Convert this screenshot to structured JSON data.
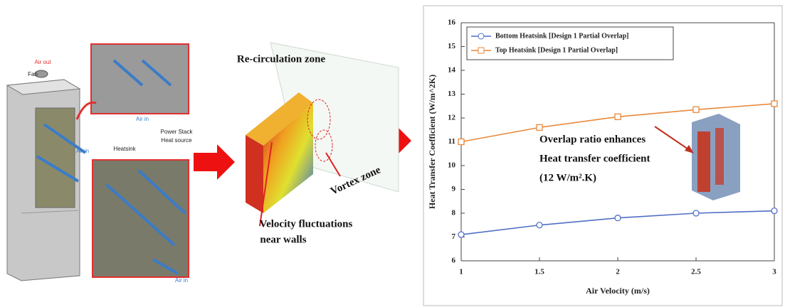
{
  "chart_data": {
    "type": "line",
    "x": [
      1,
      1.5,
      2,
      2.5,
      3
    ],
    "xlim": [
      1,
      3
    ],
    "xticks": [
      1,
      1.5,
      2,
      2.5,
      3
    ],
    "ylim": [
      6,
      16
    ],
    "yticks": [
      6,
      7,
      8,
      9,
      10,
      11,
      12,
      13,
      14,
      15,
      16
    ],
    "x_label": "Air Velocity (m/s)",
    "y_label": "Heat Transfer Coefficient (W/m^2K)",
    "legend": "upper left",
    "grid": false,
    "series": [
      {
        "name": "Bottom Heatsink [Design 1 Partial Overlap]",
        "color": "#4f6fc6",
        "marker": "circle",
        "values": [
          7.1,
          7.5,
          7.8,
          8.0,
          8.1
        ]
      },
      {
        "name": "Top Heatsink [Design 1 Partial Overlap]",
        "color": "#e8893c",
        "marker": "square",
        "values": [
          11.0,
          11.6,
          12.05,
          12.35,
          12.6
        ]
      }
    ],
    "annotations": [
      "Overlap ratio enhances",
      "Heat transfer coefficient",
      "(12 W/m².K)"
    ]
  },
  "diagram": {
    "cabinet_labels": [
      "Air out",
      "Fan",
      "Air in",
      "Air in",
      "Air in",
      "Heatsink",
      "Power Stack",
      "Heat source"
    ],
    "cfd_labels": [
      "Re-circulation zone",
      "Vortex zone",
      "Velocity fluctuations",
      "near walls"
    ]
  }
}
